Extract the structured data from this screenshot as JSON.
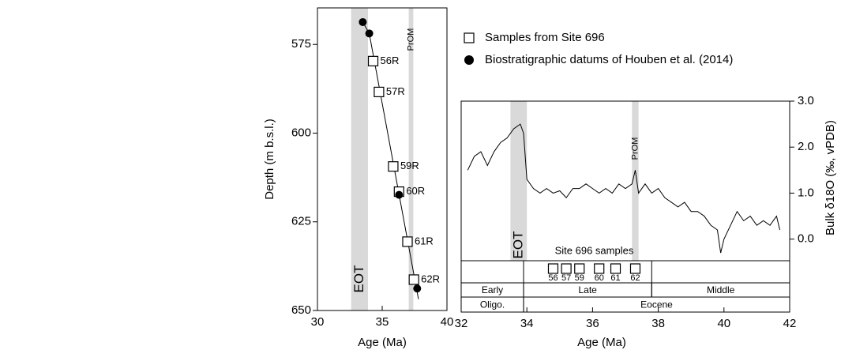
{
  "chart_data": [
    {
      "type": "scatter",
      "xlabel": "Age (Ma)",
      "ylabel": "Depth (m b.s.l.)",
      "xlim": [
        30,
        40
      ],
      "ylim": [
        564.7,
        650
      ],
      "y_inverted": true,
      "xticks": [
        30,
        35,
        40
      ],
      "yticks": [
        575,
        600,
        625,
        650
      ],
      "bands": [
        {
          "label": "EOT",
          "x": [
            32.6,
            33.9
          ],
          "color": "#d9d9d9",
          "label_pos": "bottom"
        },
        {
          "label": "PrOM",
          "x": [
            37.05,
            37.4
          ],
          "color": "#d9d9d9",
          "label_pos": "top"
        }
      ],
      "series": [
        {
          "color": "#000000",
          "marker": "line",
          "x": [
            33.5,
            34.0,
            37.8
          ],
          "values": [
            568.7,
            571.9,
            646.8
          ]
        },
        {
          "name": "Samples from Site 696",
          "color": "#000000",
          "marker": "square",
          "x": [
            34.3,
            34.75,
            35.85,
            36.3,
            36.95,
            37.45
          ],
          "values": [
            579.7,
            588.4,
            609.4,
            616.5,
            630.6,
            641.3
          ],
          "labels": [
            "56R",
            "57R",
            "59R",
            "60R",
            "61R",
            "62R"
          ]
        },
        {
          "name": "Biostratigraphic datums of Houben et al. (2014)",
          "color": "#000000",
          "marker": "circle",
          "x": [
            33.5,
            34.0,
            36.3,
            37.7
          ],
          "values": [
            568.7,
            571.9,
            617.4,
            643.8
          ]
        }
      ]
    },
    {
      "type": "line",
      "xlabel": "Age (Ma)",
      "ylabel": "Bulk δ18O (‰, vPDB)",
      "y_axis_side": "right",
      "xlim": [
        32,
        42
      ],
      "ylim": [
        -0.47,
        3.0
      ],
      "xticks": [
        32,
        34,
        36,
        38,
        40,
        42
      ],
      "yticks": [
        {
          "value": 0,
          "label": "0.0"
        },
        {
          "value": 1,
          "label": "1.0"
        },
        {
          "value": 2,
          "label": "2.0"
        },
        {
          "value": 3,
          "label": "3.0"
        }
      ],
      "bands": [
        {
          "label": "EOT",
          "x": [
            33.5,
            34.0
          ],
          "color": "#d9d9d9",
          "label_pos": "bottom"
        },
        {
          "label": "PrOM",
          "x": [
            37.2,
            37.4
          ],
          "color": "#d9d9d9",
          "label_pos": "top"
        }
      ],
      "series": [
        {
          "color": "#000000",
          "x": [
            32.2,
            32.4,
            32.6,
            32.8,
            33.0,
            33.2,
            33.4,
            33.6,
            33.8,
            33.9,
            34.0,
            34.2,
            34.4,
            34.6,
            34.8,
            35.0,
            35.2,
            35.4,
            35.6,
            35.8,
            36.0,
            36.2,
            36.4,
            36.6,
            36.8,
            37.0,
            37.2,
            37.3,
            37.4,
            37.6,
            37.8,
            38.0,
            38.2,
            38.4,
            38.6,
            38.8,
            39.0,
            39.2,
            39.4,
            39.6,
            39.8,
            39.9,
            40.0,
            40.2,
            40.4,
            40.6,
            40.8,
            41.0,
            41.2,
            41.4,
            41.6,
            41.7
          ],
          "values": [
            1.5,
            1.8,
            1.9,
            1.6,
            1.9,
            2.1,
            2.2,
            2.4,
            2.5,
            2.3,
            1.3,
            1.1,
            1.0,
            1.1,
            1.0,
            1.05,
            0.9,
            1.1,
            1.1,
            1.2,
            1.1,
            1.0,
            1.1,
            1.0,
            1.2,
            1.1,
            1.2,
            1.5,
            1.0,
            1.2,
            1.0,
            1.1,
            0.9,
            0.8,
            0.7,
            0.8,
            0.6,
            0.6,
            0.5,
            0.3,
            0.2,
            -0.3,
            0.0,
            0.3,
            0.6,
            0.4,
            0.5,
            0.3,
            0.4,
            0.3,
            0.5,
            0.2
          ]
        }
      ],
      "samples": {
        "label": "Site 696 samples",
        "x": [
          34.8,
          35.2,
          35.6,
          36.2,
          36.7,
          37.3
        ],
        "labels": [
          "56",
          "57",
          "59",
          "60",
          "61",
          "62"
        ]
      },
      "timescale": [
        {
          "label": "Early",
          "x": [
            32,
            33.9
          ],
          "row": 1
        },
        {
          "label": "Late",
          "x": [
            33.9,
            37.8
          ],
          "row": 1
        },
        {
          "label": "Middle",
          "x": [
            37.8,
            42
          ],
          "row": 1
        },
        {
          "label": "Oligo.",
          "x": [
            32,
            33.9
          ],
          "row": 2
        },
        {
          "label": "Eocene",
          "x": [
            33.9,
            42
          ],
          "row": 2
        }
      ]
    }
  ]
}
